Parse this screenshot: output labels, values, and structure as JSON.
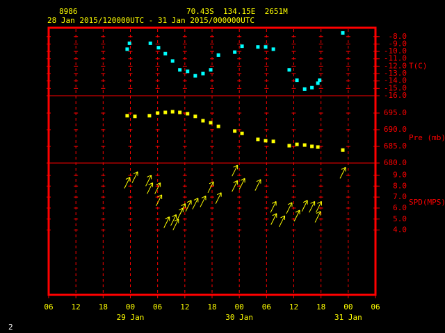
{
  "header": {
    "station": "8986",
    "location": "70.43S  134.15E  2651M",
    "period": "28 Jan 2015/120000UTC - 31 Jan 2015/000000UTC"
  },
  "footer": {
    "page": "2"
  },
  "chart_data": [
    {
      "type": "scatter",
      "y_label": "T(C)",
      "color": "#00ffff",
      "grid": true,
      "x": [
        23.3,
        23.8,
        28.4,
        30.2,
        31.7,
        33.3,
        34.9,
        36.6,
        38.3,
        40.0,
        41.7,
        43.4,
        47.0,
        48.6,
        52.1,
        53.8,
        55.5,
        59.0,
        60.7,
        62.4,
        64.0,
        65.3,
        65.7,
        70.8
      ],
      "values": [
        -9.7,
        -8.9,
        -8.9,
        -9.5,
        -10.3,
        -11.3,
        -12.5,
        -12.7,
        -13.3,
        -13.0,
        -12.5,
        -10.5,
        -10.1,
        -9.3,
        -9.4,
        -9.4,
        -9.7,
        -12.5,
        -13.9,
        -15.1,
        -14.9,
        -14.3,
        -13.9,
        -7.5
      ],
      "xlim": [
        6,
        78
      ],
      "ylim": [
        -16,
        -6.8
      ],
      "yticks": [
        {
          "value": -8,
          "label": "-8.0"
        },
        {
          "value": -9,
          "label": "-9.0"
        },
        {
          "value": -10,
          "label": "-10.0"
        },
        {
          "value": -11,
          "label": "-11.0"
        },
        {
          "value": -12,
          "label": "-12.0"
        },
        {
          "value": -13,
          "label": "-13.0"
        },
        {
          "value": -14,
          "label": "-14.0"
        },
        {
          "value": -15,
          "label": "-15.0"
        },
        {
          "value": -16,
          "label": "-16.0"
        }
      ]
    },
    {
      "type": "scatter",
      "y_label": "Pre (mb)",
      "color": "#ffff00",
      "grid": true,
      "x": [
        23.3,
        25.0,
        28.2,
        30.0,
        31.7,
        33.3,
        34.9,
        36.6,
        38.3,
        40.0,
        41.7,
        43.4,
        47.0,
        48.6,
        52.1,
        53.8,
        55.5,
        59.0,
        60.7,
        62.4,
        64.0,
        65.3,
        70.8
      ],
      "values": [
        694.2,
        694.0,
        694.2,
        695.0,
        695.2,
        695.4,
        695.2,
        694.8,
        694.0,
        692.7,
        692.1,
        691.0,
        689.6,
        688.9,
        687.1,
        686.7,
        686.5,
        685.2,
        685.6,
        685.4,
        685.0,
        684.8,
        683.9
      ],
      "xlim": [
        6,
        78
      ],
      "ylim": [
        680,
        700.2
      ],
      "yticks": [
        {
          "value": 695,
          "label": "695.0"
        },
        {
          "value": 690,
          "label": "690.0"
        },
        {
          "value": 685,
          "label": "685.0"
        },
        {
          "value": 680,
          "label": "680.0"
        }
      ]
    },
    {
      "type": "arrow",
      "y_label": "SPD(MPS)",
      "color": "#ffff00",
      "grid": true,
      "x": [
        23.3,
        25.0,
        28.0,
        28.3,
        30.0,
        30.3,
        32.0,
        33.5,
        34.0,
        35.0,
        35.5,
        36.8,
        38.3,
        40.0,
        41.7,
        43.4,
        47.0,
        47.0,
        48.6,
        52.1,
        55.5,
        55.6,
        57.4,
        59.0,
        60.7,
        62.4,
        64.0,
        65.3,
        65.5,
        70.8
      ],
      "values": [
        8.3,
        8.8,
        8.5,
        7.8,
        7.8,
        6.7,
        4.7,
        4.9,
        4.5,
        5.5,
        5.9,
        6.2,
        6.4,
        6.6,
        7.9,
        6.9,
        9.4,
        8.0,
        8.2,
        8.1,
        6.1,
        5.0,
        4.8,
        6.0,
        5.3,
        6.2,
        6.1,
        5.2,
        6.1,
        9.2
      ],
      "xlim": [
        6,
        78
      ],
      "ylim": [
        -1.9,
        10.1
      ],
      "yticks": [
        {
          "value": 9,
          "label": "9.0"
        },
        {
          "value": 8,
          "label": "8.0"
        },
        {
          "value": 7,
          "label": "7.0"
        },
        {
          "value": 6,
          "label": "6.0"
        },
        {
          "value": 5,
          "label": "5.0"
        },
        {
          "value": 4,
          "label": "4.0"
        }
      ],
      "xticks": [
        {
          "value": 6,
          "label": "06"
        },
        {
          "value": 12,
          "label": "12"
        },
        {
          "value": 18,
          "label": "18"
        },
        {
          "value": 24,
          "label": "00"
        },
        {
          "value": 30,
          "label": "06"
        },
        {
          "value": 36,
          "label": "12"
        },
        {
          "value": 42,
          "label": "18"
        },
        {
          "value": 48,
          "label": "00"
        },
        {
          "value": 54,
          "label": "06"
        },
        {
          "value": 60,
          "label": "12"
        },
        {
          "value": 66,
          "label": "18"
        },
        {
          "value": 72,
          "label": "00"
        },
        {
          "value": 78,
          "label": "06"
        }
      ],
      "x_date_ticks": [
        {
          "value": 24,
          "label": "29 Jan"
        },
        {
          "value": 48,
          "label": "30 Jan"
        },
        {
          "value": 72,
          "label": "31 Jan"
        }
      ]
    }
  ]
}
